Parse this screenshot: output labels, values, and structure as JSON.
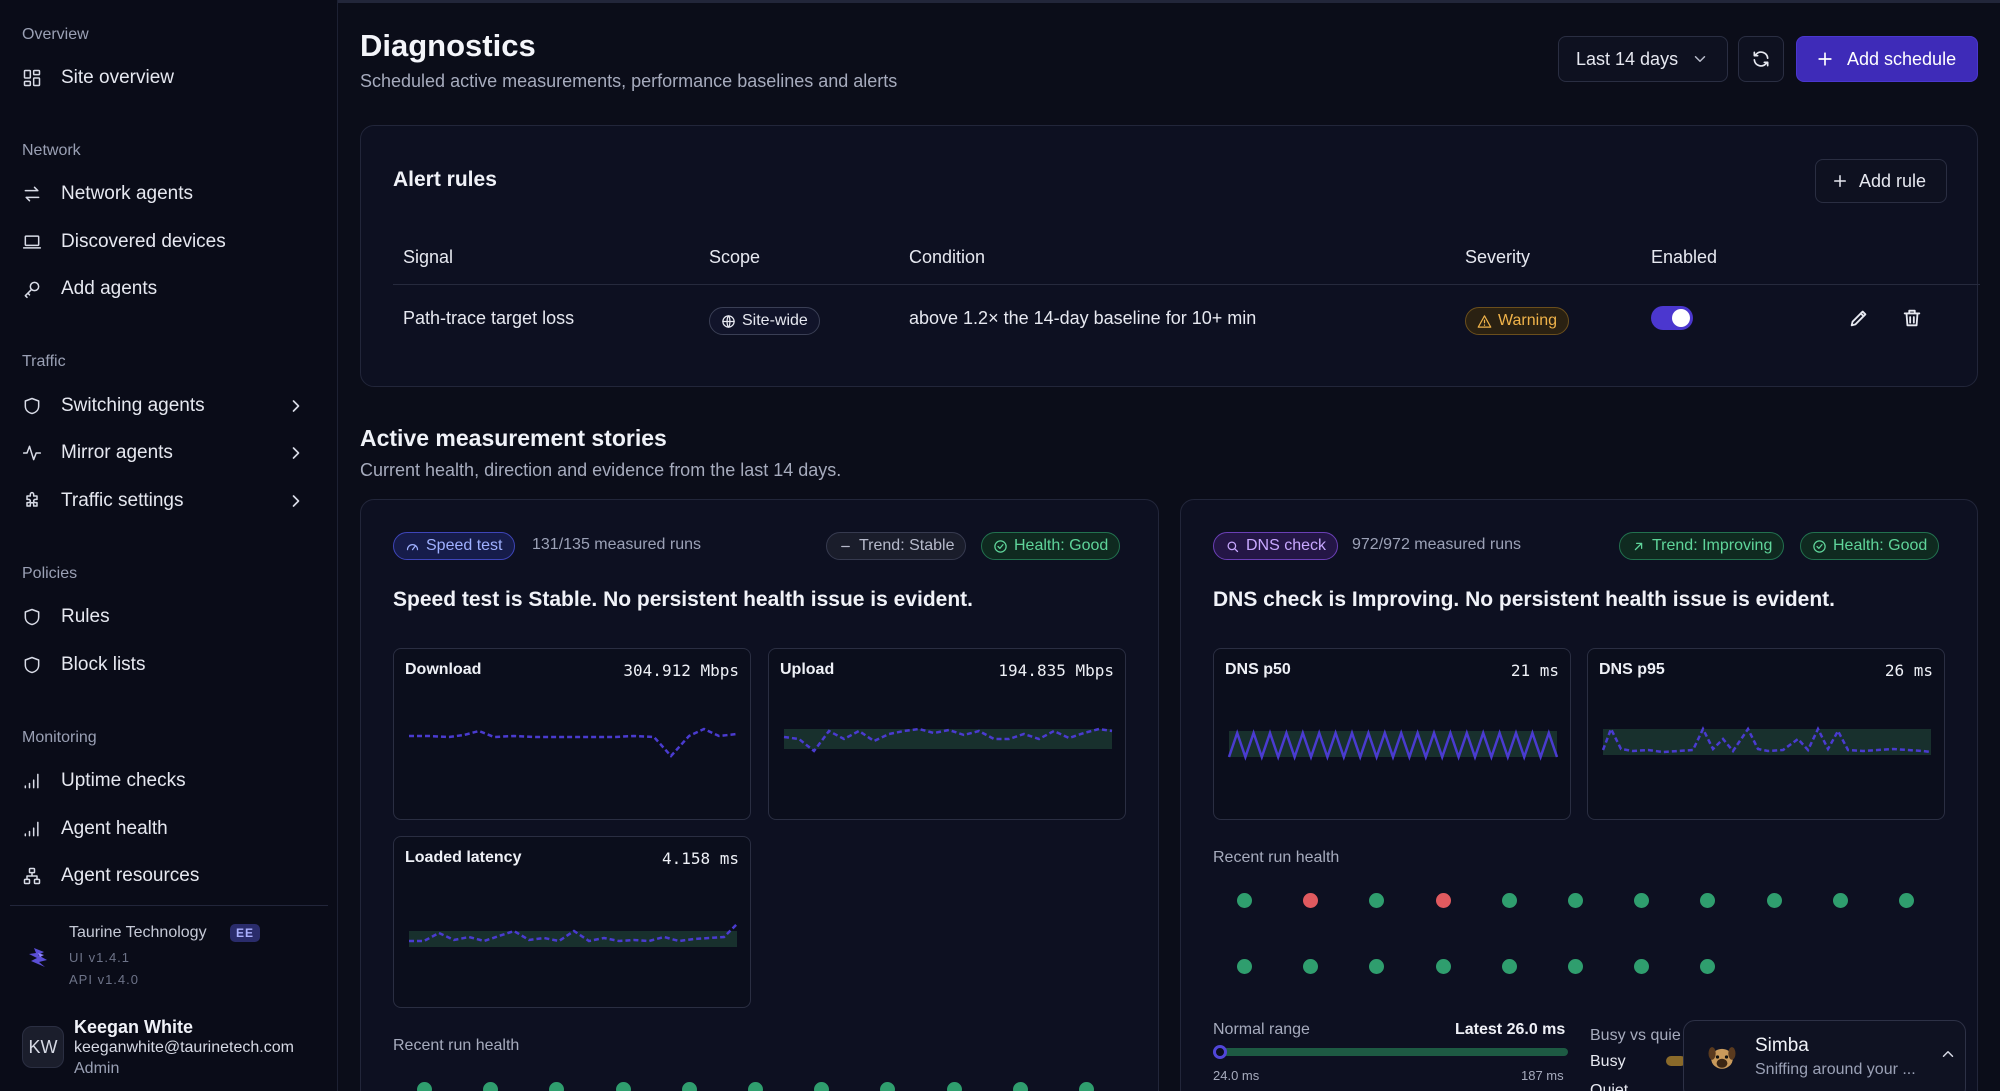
{
  "sidebar": {
    "sections": [
      {
        "label": "Overview",
        "items": [
          {
            "label": "Site overview",
            "icon": "grid-icon"
          }
        ]
      },
      {
        "label": "Network",
        "items": [
          {
            "label": "Network agents",
            "icon": "arrows-icon"
          },
          {
            "label": "Discovered devices",
            "icon": "laptop-icon"
          },
          {
            "label": "Add agents",
            "icon": "key-icon"
          }
        ]
      },
      {
        "label": "Traffic",
        "items": [
          {
            "label": "Switching agents",
            "icon": "shield-icon"
          },
          {
            "label": "Mirror agents",
            "icon": "activity-icon"
          },
          {
            "label": "Traffic settings",
            "icon": "puzzle-icon"
          }
        ]
      },
      {
        "label": "Policies",
        "items": [
          {
            "label": "Rules",
            "icon": "shield-icon"
          },
          {
            "label": "Block lists",
            "icon": "shield-icon"
          }
        ]
      },
      {
        "label": "Monitoring",
        "items": [
          {
            "label": "Uptime checks",
            "icon": "signal-icon"
          },
          {
            "label": "Agent health",
            "icon": "signal-icon"
          },
          {
            "label": "Agent resources",
            "icon": "network-icon"
          }
        ]
      }
    ],
    "org": {
      "name": "Taurine Technology",
      "edition": "EE",
      "ui_version": "UI  v1.4.1",
      "api_version": "API  v1.4.0"
    },
    "user": {
      "initials": "KW",
      "name": "Keegan White",
      "email": "keeganwhite@taurinetech.com",
      "role": "Admin"
    }
  },
  "header": {
    "title": "Diagnostics",
    "subtitle": "Scheduled active measurements, performance baselines and alerts",
    "range_select": "Last 14 days",
    "add_schedule": "Add schedule"
  },
  "alert_rules": {
    "title": "Alert rules",
    "add_rule": "Add rule",
    "columns": [
      "Signal",
      "Scope",
      "Condition",
      "Severity",
      "Enabled"
    ],
    "rows": [
      {
        "signal": "Path-trace target loss",
        "scope": "Site-wide",
        "condition": "above 1.2× the 14-day baseline for 10+ min",
        "severity": "Warning",
        "enabled": true
      }
    ]
  },
  "stories": {
    "title": "Active measurement stories",
    "subtitle": "Current health, direction and evidence from the last 14 days.",
    "cards": [
      {
        "tag": "Speed test",
        "runs": "131/135 measured runs",
        "trend": "Trend: Stable",
        "health": "Health: Good",
        "headline": "Speed test is Stable. No persistent health issue is evident.",
        "metrics": [
          {
            "label": "Download",
            "value": "304.912 Mbps"
          },
          {
            "label": "Upload",
            "value": "194.835 Mbps"
          },
          {
            "label": "Loaded latency",
            "value": "4.158 ms"
          }
        ],
        "recent_label": "Recent run health"
      },
      {
        "tag": "DNS check",
        "runs": "972/972 measured runs",
        "trend": "Trend: Improving",
        "health": "Health: Good",
        "headline": "DNS check is Improving. No persistent health issue is evident.",
        "metrics": [
          {
            "label": "DNS p50",
            "value": "21 ms"
          },
          {
            "label": "DNS p95",
            "value": "26 ms"
          }
        ],
        "recent_label": "Recent run health",
        "run_health": [
          "good",
          "bad",
          "good",
          "bad",
          "good",
          "good",
          "good",
          "good",
          "good",
          "good",
          "good",
          "good",
          "good",
          "good",
          "good",
          "good",
          "good",
          "good",
          "good"
        ],
        "normal_range_label": "Normal range",
        "latest": "Latest 26.0 ms",
        "range_min": "24.0 ms",
        "range_max": "187 ms",
        "busy_quiet_label": "Busy vs quie",
        "busy_label": "Busy",
        "quiet_label": "Quiet"
      }
    ]
  },
  "toast": {
    "title": "Simba",
    "subtitle": "Sniffing around your ..."
  },
  "colors": {
    "accent": "#3e2bb8",
    "good": "#2f9e6e",
    "bad": "#e05a5f",
    "warning": "#e0a030"
  }
}
